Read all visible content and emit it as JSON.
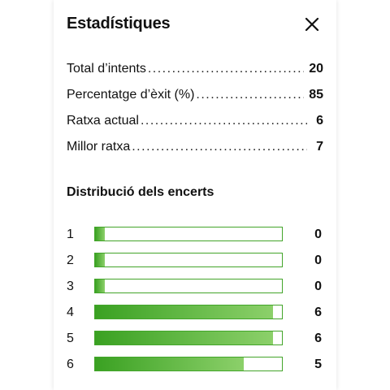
{
  "header": {
    "title": "Estadístiques",
    "close_icon": "close-icon"
  },
  "stats": [
    {
      "label": "Total d’intents",
      "value": "20"
    },
    {
      "label": "Percentatge d’èxit (%)",
      "value": "85"
    },
    {
      "label": "Ratxa actual",
      "value": "6"
    },
    {
      "label": "Millor ratxa",
      "value": "7"
    }
  ],
  "distribution": {
    "title": "Distribució dels encerts",
    "max": 6,
    "rows": [
      {
        "label": "1",
        "count": 0
      },
      {
        "label": "2",
        "count": 0
      },
      {
        "label": "3",
        "count": 0
      },
      {
        "label": "4",
        "count": 6
      },
      {
        "label": "5",
        "count": 6
      },
      {
        "label": "6",
        "count": 5
      }
    ]
  },
  "colors": {
    "bar_start": "#3aa122",
    "bar_end": "#8cd06a",
    "bar_border": "#43a52a"
  }
}
